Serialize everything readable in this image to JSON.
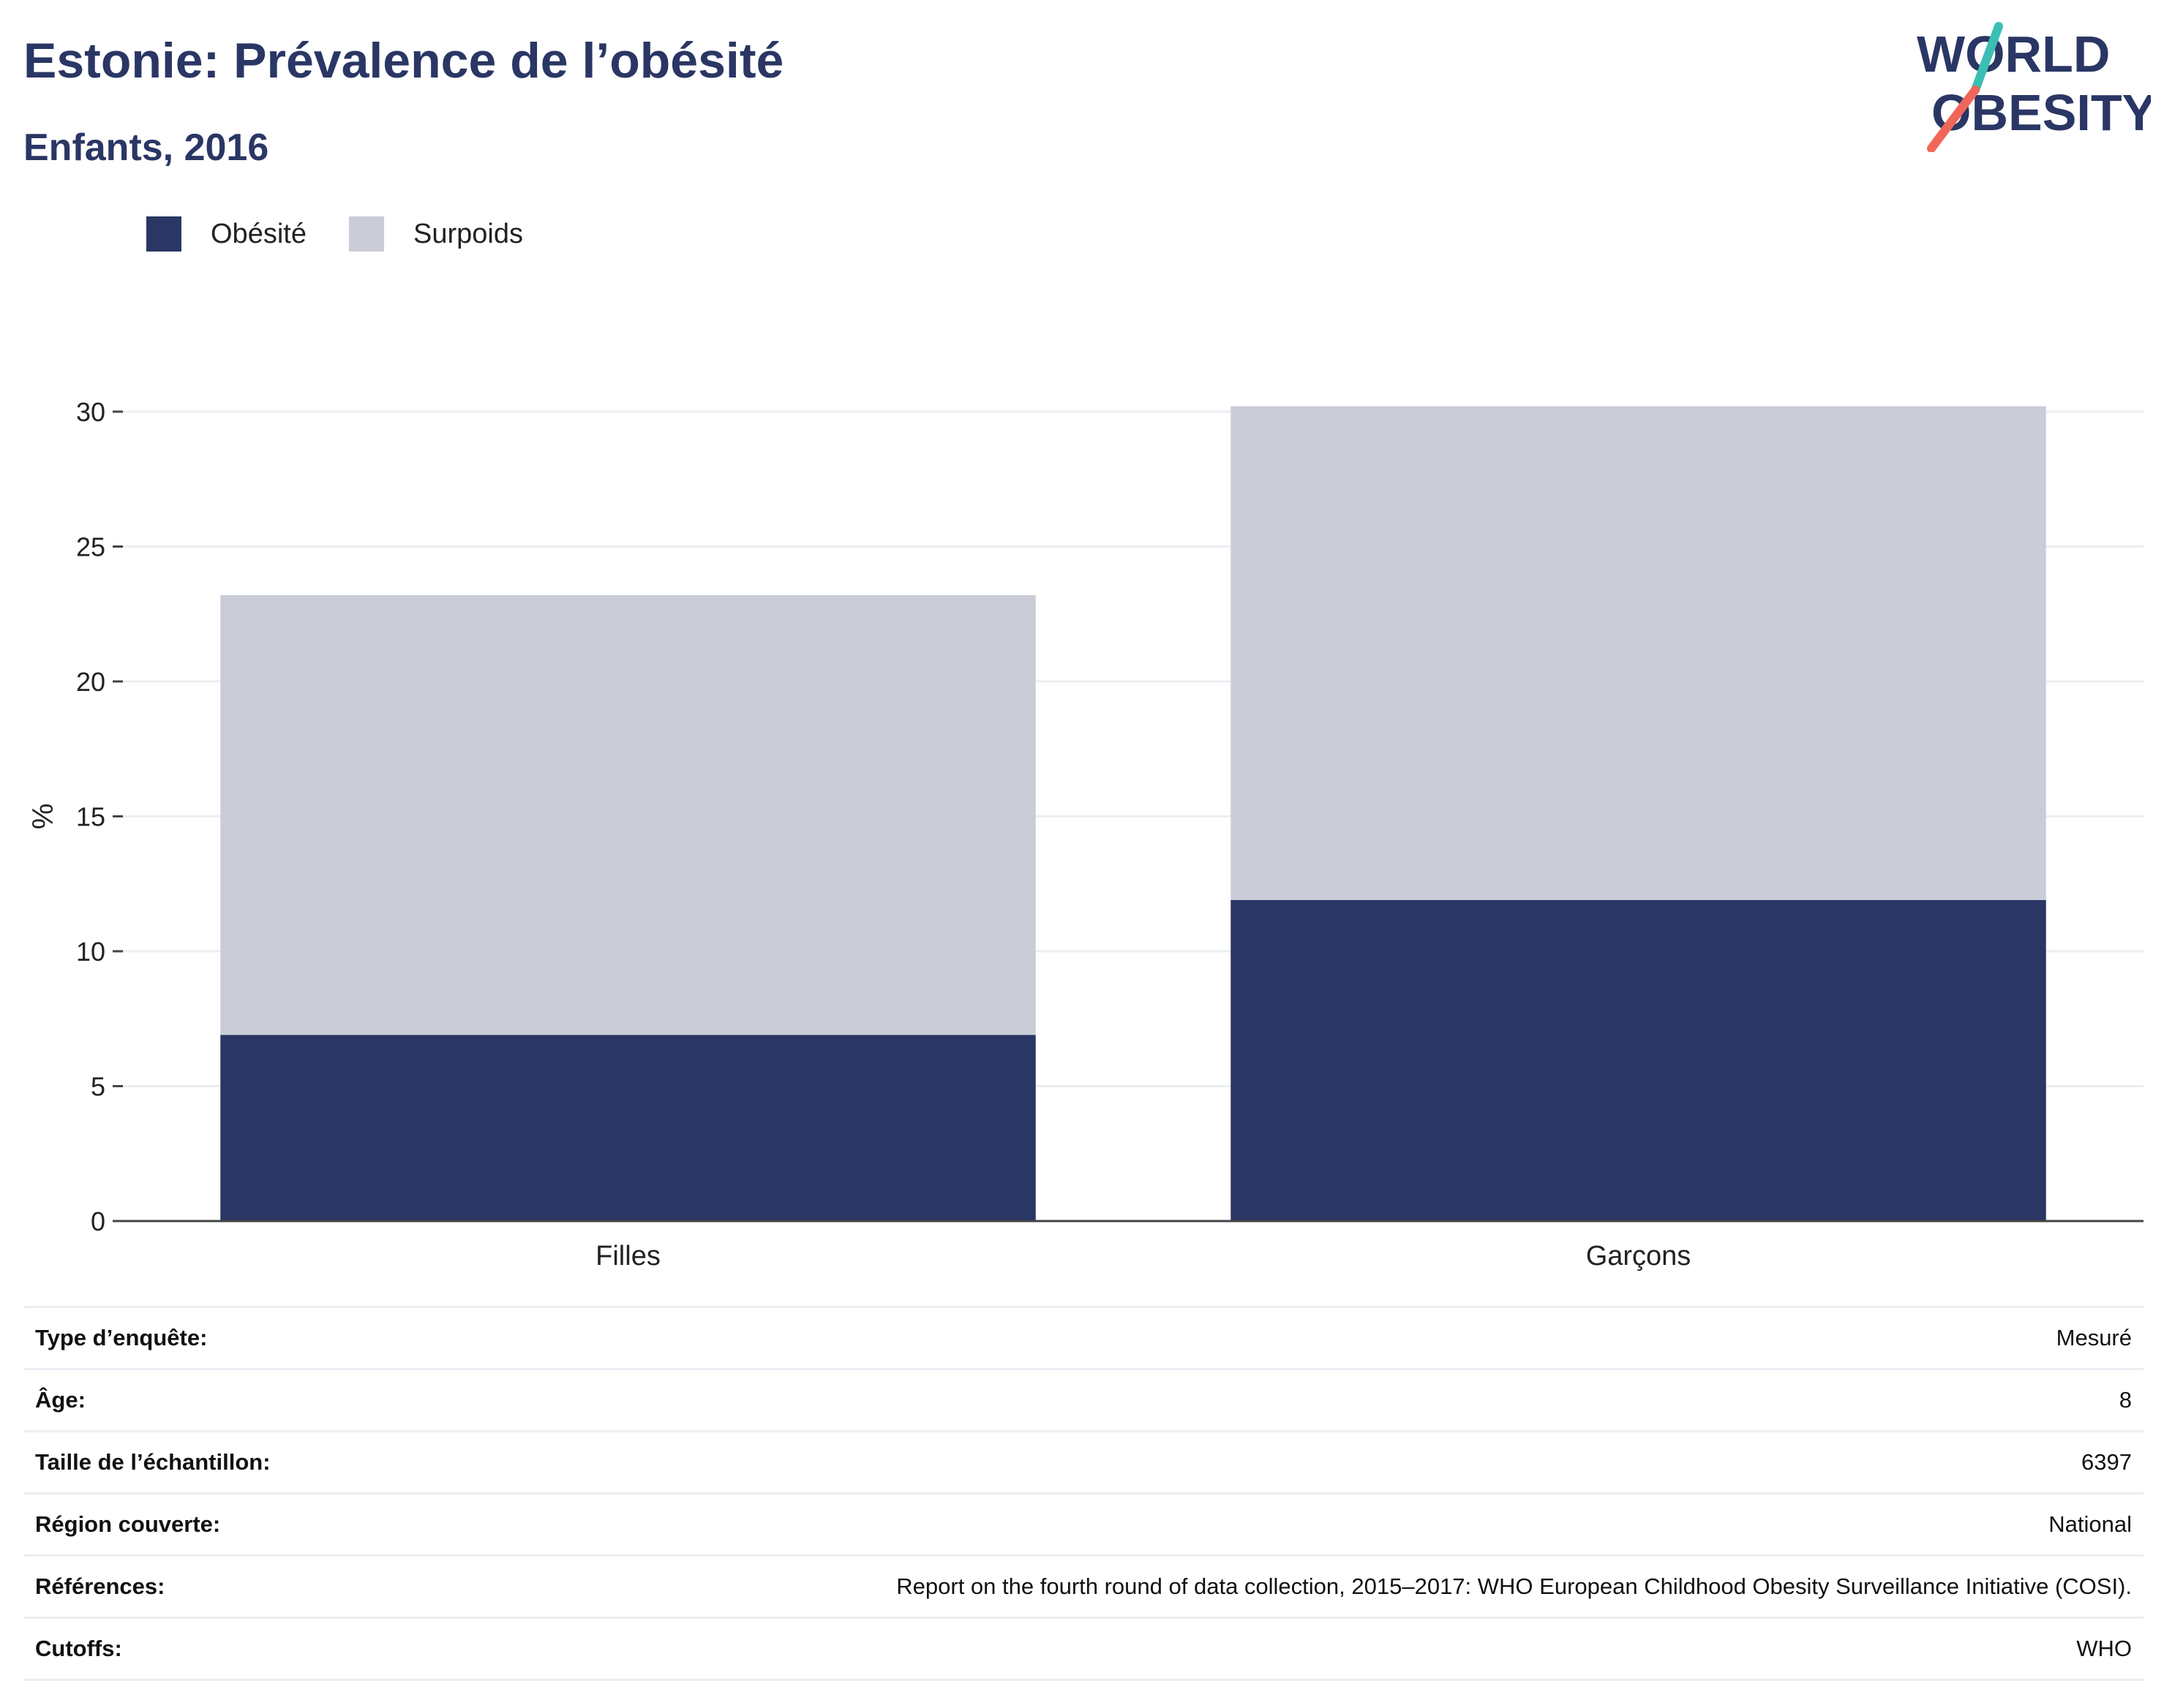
{
  "header": {
    "title": "Estonie: Prévalence de l’obésité",
    "subtitle": "Enfants, 2016"
  },
  "logo": {
    "line1": "WORLD",
    "line2": "OBESITY",
    "colors": {
      "text": "#2a3664",
      "slash_teal": "#3bbfb4",
      "slash_coral": "#f0675a"
    }
  },
  "colors": {
    "obesite": "#2a3664",
    "surpoids": "#cacdd8",
    "grid": "#eceef3",
    "axis": "#444444"
  },
  "chart_data": {
    "type": "bar",
    "stacked": true,
    "title": "",
    "xlabel": "",
    "ylabel": "%",
    "categories": [
      "Filles",
      "Garçons"
    ],
    "series": [
      {
        "name": "Obésité",
        "values": [
          6.9,
          11.9
        ]
      },
      {
        "name": "Surpoids",
        "values": [
          16.3,
          18.3
        ]
      }
    ],
    "ylim": [
      0,
      30
    ],
    "yticks": [
      0,
      5,
      10,
      15,
      20,
      25,
      30
    ],
    "grid": true,
    "legend": "top-left"
  },
  "info": [
    {
      "key": "Type d’enquête:",
      "value": "Mesuré"
    },
    {
      "key": "Âge:",
      "value": "8"
    },
    {
      "key": "Taille de l’échantillon:",
      "value": "6397"
    },
    {
      "key": "Région couverte:",
      "value": "National"
    },
    {
      "key": "Références:",
      "value": "Report on the fourth round of data collection, 2015–2017: WHO European Childhood Obesity Surveillance Initiative (COSI)."
    },
    {
      "key": "Cutoffs:",
      "value": "WHO"
    }
  ]
}
